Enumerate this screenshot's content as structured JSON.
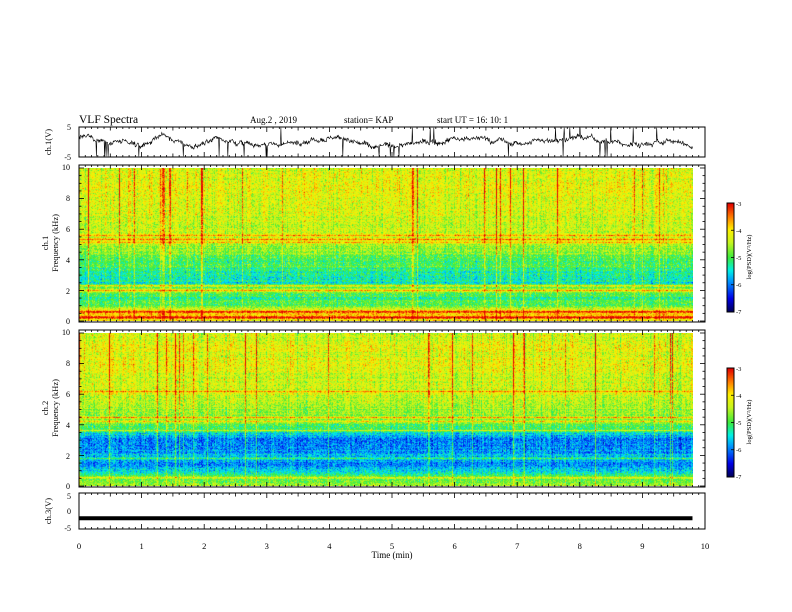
{
  "header": {
    "title": "VLF Spectra",
    "date": "Aug.2  , 2019",
    "station": "station= KAP",
    "start": "start  UT =   16: 10: 1"
  },
  "chart_data": [
    {
      "type": "line",
      "panel": "waveform-ch1",
      "ylabel": "ch.1(V)",
      "ylim": [
        -5,
        5
      ],
      "yticks": [
        "5",
        "-5"
      ],
      "xlim": [
        0,
        10
      ],
      "x_end": 9.8,
      "level_profile": [
        [
          0,
          1.5
        ],
        [
          0.5,
          0.5
        ],
        [
          1.0,
          -1.5
        ],
        [
          1.3,
          2.2
        ],
        [
          1.8,
          -1.8
        ],
        [
          2.2,
          1.8
        ],
        [
          2.7,
          -0.8
        ],
        [
          3.2,
          -1.2
        ],
        [
          3.7,
          1.0
        ],
        [
          4.2,
          1.5
        ],
        [
          4.7,
          -1.5
        ],
        [
          5.2,
          -1.0
        ],
        [
          5.6,
          0.0
        ],
        [
          6.0,
          1.2
        ],
        [
          6.5,
          0.8
        ],
        [
          7.0,
          -0.5
        ],
        [
          7.5,
          0.5
        ],
        [
          8.0,
          1.5
        ],
        [
          8.5,
          0.0
        ],
        [
          9.0,
          -0.8
        ],
        [
          9.5,
          0.5
        ],
        [
          9.8,
          -1.5
        ]
      ]
    },
    {
      "type": "heatmap",
      "panel": "spectrogram-ch1",
      "ylabel": [
        "ch.1",
        "Frequency  (kHz)"
      ],
      "ylim": [
        0,
        10
      ],
      "yticks": [
        "0",
        "2",
        "4",
        "6",
        "8",
        "10"
      ],
      "xlim": [
        0,
        10
      ],
      "x_end": 9.8,
      "colorbar": {
        "label": "log(PSD)(V²/Hz)",
        "range": [
          -7,
          -3
        ],
        "ticks": [
          "-3",
          "-4",
          "-5",
          "-6",
          "-7"
        ]
      },
      "freq_profile": [
        [
          0,
          -4.0
        ],
        [
          0.5,
          -3.7
        ],
        [
          1.0,
          -4.9
        ],
        [
          1.5,
          -5.2
        ],
        [
          2.0,
          -4.6
        ],
        [
          2.5,
          -5.4
        ],
        [
          3.0,
          -5.3
        ],
        [
          3.5,
          -5.1
        ],
        [
          4.0,
          -4.9
        ],
        [
          4.5,
          -4.7
        ],
        [
          5.0,
          -4.5
        ],
        [
          5.5,
          -4.4
        ],
        [
          6.0,
          -4.4
        ],
        [
          7.0,
          -4.3
        ],
        [
          8.0,
          -4.2
        ],
        [
          9.0,
          -4.2
        ],
        [
          10.0,
          -4.3
        ]
      ],
      "lines_khz": [
        0.2,
        0.6,
        2.0,
        2.3,
        5.1,
        5.3,
        5.6
      ]
    },
    {
      "type": "heatmap",
      "panel": "spectrogram-ch2",
      "ylabel": [
        "ch.2",
        "Frequency  (kHz)"
      ],
      "ylim": [
        0,
        10
      ],
      "yticks": [
        "0",
        "2",
        "4",
        "6",
        "8",
        "10"
      ],
      "xlim": [
        0,
        10
      ],
      "x_end": 9.8,
      "colorbar": {
        "label": "log(PSD)(V²/Hz)",
        "range": [
          -7,
          -3
        ],
        "ticks": [
          "-3",
          "-4",
          "-5",
          "-6",
          "-7"
        ]
      },
      "freq_profile": [
        [
          0,
          -4.6
        ],
        [
          0.5,
          -5.0
        ],
        [
          1.0,
          -5.6
        ],
        [
          1.5,
          -5.9
        ],
        [
          2.0,
          -5.7
        ],
        [
          2.5,
          -5.9
        ],
        [
          3.0,
          -6.0
        ],
        [
          3.5,
          -5.4
        ],
        [
          4.0,
          -4.9
        ],
        [
          4.5,
          -4.7
        ],
        [
          5.0,
          -4.6
        ],
        [
          5.5,
          -4.5
        ],
        [
          6.0,
          -4.4
        ],
        [
          7.0,
          -4.3
        ],
        [
          8.0,
          -4.2
        ],
        [
          9.0,
          -4.2
        ],
        [
          10.0,
          -4.3
        ]
      ],
      "lines_khz": [
        0.5,
        1.8,
        3.6,
        4.2,
        4.5,
        6.2
      ]
    },
    {
      "type": "line",
      "panel": "waveform-ch3",
      "ylabel": "ch.3(V)",
      "ylim": [
        -5,
        5
      ],
      "yticks": [
        "5",
        "0",
        "-5"
      ],
      "xlim": [
        0,
        10
      ],
      "x_end": 9.8,
      "constant_value": -2,
      "xlabel": "Time  (min)",
      "xticks": [
        "0",
        "1",
        "2",
        "3",
        "4",
        "5",
        "6",
        "7",
        "8",
        "9",
        "10"
      ]
    }
  ]
}
